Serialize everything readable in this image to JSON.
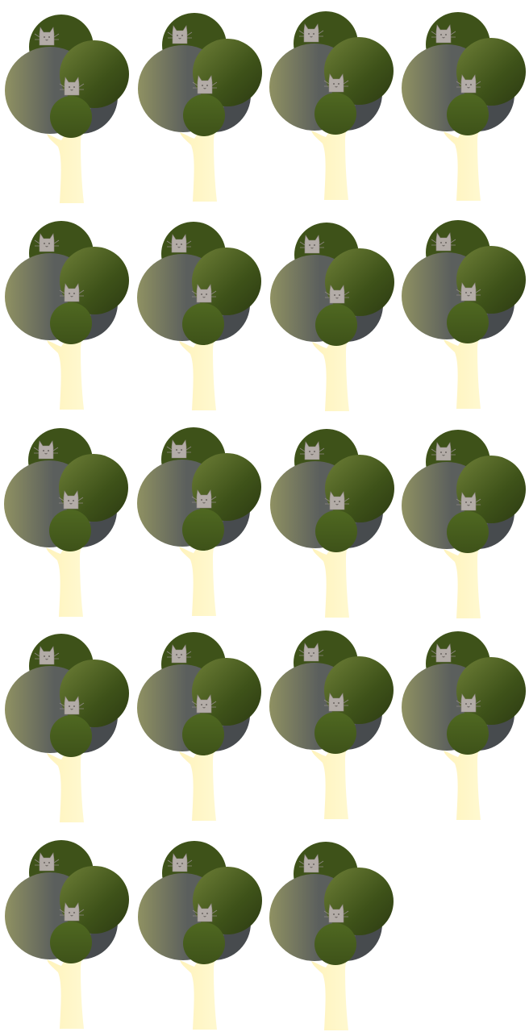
{
  "sheet": {
    "columns": 4,
    "frame_count": 19
  },
  "colors": {
    "background": "#ffffff",
    "trunk_light": "#fffbd9",
    "trunk_mid": "#fff3bc",
    "foliage_dark": "#3e5219",
    "foliage_mid": "#4f6821",
    "foliage_light": "#6e7f37",
    "canopy_gray": "#5b5f5d",
    "canopy_olive": "#8f9162",
    "shadow": "#474b4e",
    "cat_fur": "#b3aca7",
    "cat_outline": "#8e8782",
    "cat_face": "#55504c"
  },
  "frames": [
    {
      "id": 1,
      "icon": "tree-with-cats-icon"
    },
    {
      "id": 2,
      "icon": "tree-with-cats-icon"
    },
    {
      "id": 3,
      "icon": "tree-with-cats-icon"
    },
    {
      "id": 4,
      "icon": "tree-with-cats-icon"
    },
    {
      "id": 5,
      "icon": "tree-with-cats-icon"
    },
    {
      "id": 6,
      "icon": "tree-with-cats-icon"
    },
    {
      "id": 7,
      "icon": "tree-with-cats-icon"
    },
    {
      "id": 8,
      "icon": "tree-with-cats-icon"
    },
    {
      "id": 9,
      "icon": "tree-with-cats-icon"
    },
    {
      "id": 10,
      "icon": "tree-with-cats-icon"
    },
    {
      "id": 11,
      "icon": "tree-with-cats-icon"
    },
    {
      "id": 12,
      "icon": "tree-with-cats-icon"
    },
    {
      "id": 13,
      "icon": "tree-with-cats-icon"
    },
    {
      "id": 14,
      "icon": "tree-with-cats-icon"
    },
    {
      "id": 15,
      "icon": "tree-with-cats-icon"
    },
    {
      "id": 16,
      "icon": "tree-with-cats-icon"
    },
    {
      "id": 17,
      "icon": "tree-with-cats-icon"
    },
    {
      "id": 18,
      "icon": "tree-with-cats-icon"
    },
    {
      "id": 19,
      "icon": "tree-with-cats-icon"
    }
  ]
}
